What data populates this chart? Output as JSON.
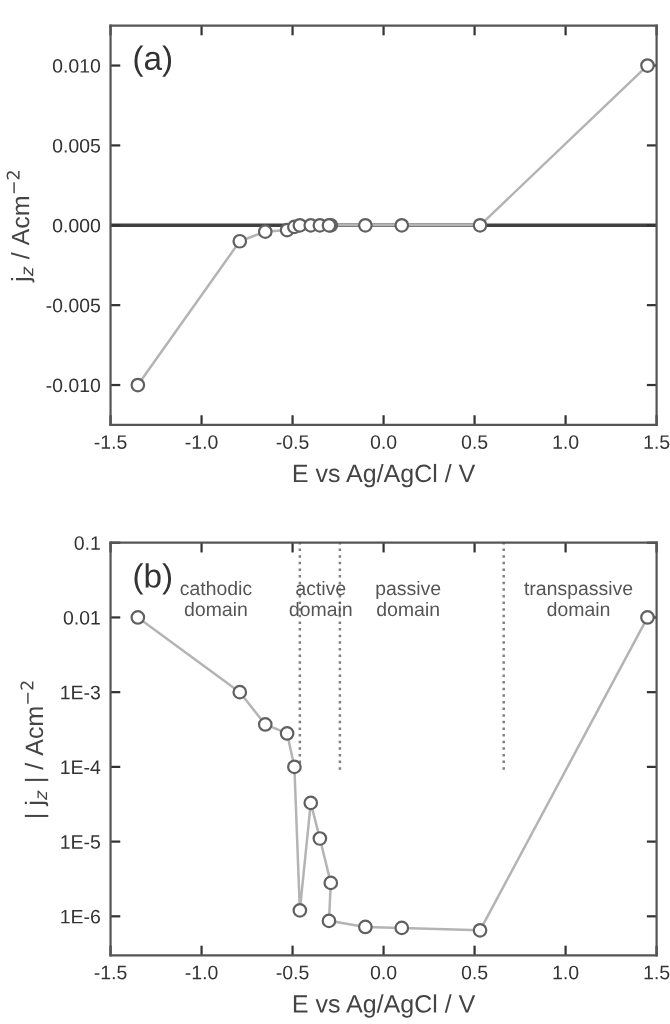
{
  "chart_data": [
    {
      "type": "line",
      "title": "(a)",
      "xlabel": "E vs Ag/AgCl / V",
      "ylabel": "j$_{z}$ / Acm$^{−2}$",
      "x": [
        -1.35,
        -0.79,
        -0.65,
        -0.53,
        -0.49,
        -0.46,
        -0.4,
        -0.35,
        -0.29,
        -0.3,
        -0.1,
        0.1,
        0.53,
        1.45
      ],
      "series": [
        {
          "color": "#b4b4b4",
          "values": [
            -0.01,
            -0.001,
            -0.0004,
            -0.0003,
            -0.0001,
            0,
            0,
            0,
            0,
            0,
            0,
            0,
            0,
            0.01
          ]
        }
      ],
      "marker": "circle",
      "line_style": "solid",
      "xlim": [
        -1.5,
        1.5
      ],
      "xticks": [
        {
          "value": -1.5,
          "label": "-1.5"
        },
        {
          "value": -1.0,
          "label": "-1.0"
        },
        {
          "value": -0.5,
          "label": "-0.5"
        },
        {
          "value": 0.0,
          "label": "0.0"
        },
        {
          "value": 0.5,
          "label": "0.5"
        },
        {
          "value": 1.0,
          "label": "1.0"
        },
        {
          "value": 1.5,
          "label": "1.5"
        }
      ],
      "ylim": [
        -0.0125,
        0.0125
      ],
      "yticks": [
        {
          "value": -0.01,
          "label": "-0.010"
        },
        {
          "value": -0.005,
          "label": "-0.005"
        },
        {
          "value": 0,
          "label": "0.000"
        },
        {
          "value": 0.005,
          "label": "0.005"
        },
        {
          "value": 0.01,
          "label": "0.010"
        }
      ],
      "ref_lines": [
        {
          "axis": "y",
          "value": 0,
          "color": "#404040",
          "line_style": "solid"
        }
      ],
      "grid": false,
      "legend": false
    },
    {
      "type": "line",
      "title": "(b)",
      "xlabel": "E vs Ag/AgCl / V",
      "ylabel": "| j$_{z}$ | / Acm$^{−2}$",
      "x": [
        -1.35,
        -0.79,
        -0.65,
        -0.53,
        -0.49,
        -0.46,
        -0.4,
        -0.35,
        -0.29,
        -0.3,
        -0.1,
        0.1,
        0.53,
        1.45
      ],
      "series": [
        {
          "color": "#b4b4b4",
          "values": [
            0.01,
            0.001,
            0.00037,
            0.00028,
            0.0001,
            1.2e-06,
            3.3e-05,
            1.1e-05,
            2.8e-06,
            8.7e-07,
            7.2e-07,
            7e-07,
            6.5e-07,
            0.01
          ]
        }
      ],
      "marker": "circle",
      "line_style": "solid",
      "log": "y",
      "xlim": [
        -1.5,
        1.5
      ],
      "xticks": [
        {
          "value": -1.5,
          "label": "-1.5"
        },
        {
          "value": -1.0,
          "label": "-1.0"
        },
        {
          "value": -0.5,
          "label": "-0.5"
        },
        {
          "value": 0.0,
          "label": "0.0"
        },
        {
          "value": 0.5,
          "label": "0.5"
        },
        {
          "value": 1.0,
          "label": "1.0"
        },
        {
          "value": 1.5,
          "label": "1.5"
        }
      ],
      "ylim": [
        3e-07,
        0.1
      ],
      "yticks": [
        {
          "value": 1e-06,
          "label": "1E-6"
        },
        {
          "value": 1e-05,
          "label": "1E-5"
        },
        {
          "value": 0.0001,
          "label": "1E-4"
        },
        {
          "value": 0.001,
          "label": "1E-3"
        },
        {
          "value": 0.01,
          "label": "0.01"
        },
        {
          "value": 0.1,
          "label": "0.1"
        }
      ],
      "ref_lines": [
        {
          "axis": "x",
          "value": -0.46,
          "color": "#808080",
          "line_style": "dotted"
        },
        {
          "axis": "x",
          "value": -0.24,
          "color": "#808080",
          "line_style": "dotted"
        },
        {
          "axis": "x",
          "value": 0.66,
          "color": "#808080",
          "line_style": "dotted"
        }
      ],
      "annotations": [
        "cathodic\ndomain",
        "active\ndomain",
        "passive\ndomain",
        "transpassive\ndomain"
      ],
      "grid": false,
      "legend": false
    }
  ]
}
